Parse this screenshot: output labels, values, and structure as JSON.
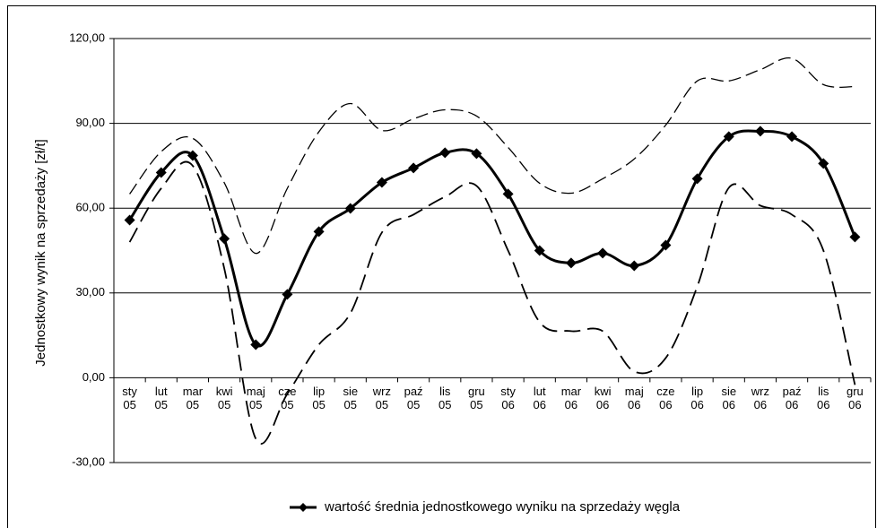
{
  "chart_data": {
    "type": "line",
    "y_axis_label": "Jednostkowy wynik na sprzedaży [zł/t]",
    "categories": [
      "sty 05",
      "lut 05",
      "mar 05",
      "kwi 05",
      "maj 05",
      "cze 05",
      "lip 05",
      "sie 05",
      "wrz 05",
      "paź 05",
      "lis 05",
      "gru 05",
      "sty 06",
      "lut 06",
      "mar 06",
      "kwi 06",
      "maj 06",
      "cze 06",
      "lip 06",
      "sie 06",
      "wrz 06",
      "paź 06",
      "lis 06",
      "gru 06"
    ],
    "series": [
      {
        "name": "wartość średnia jednostkowego wyniku na sprzedaży węgla",
        "color": "#000000",
        "style": "solid",
        "marker": "diamond",
        "values": [
          55.8,
          72.6,
          78.6,
          49.2,
          11.7,
          29.5,
          51.7,
          59.9,
          69.1,
          74.2,
          79.6,
          79.3,
          65,
          45,
          40.6,
          44.1,
          39.6,
          46.9,
          70.4,
          85.3,
          87.2,
          85.3,
          75.8,
          49.8
        ]
      },
      {
        "color": "#000000",
        "style": "dashed-thin",
        "values": [
          65,
          80,
          84.7,
          69,
          44,
          67,
          87,
          97,
          87.5,
          91.6,
          94.8,
          92.6,
          81.5,
          68.8,
          65.3,
          70.4,
          77.4,
          89.4,
          105,
          105,
          109,
          113,
          103.7,
          103
        ]
      },
      {
        "color": "#000000",
        "style": "dashed-thick",
        "values": [
          48,
          67,
          75,
          38.7,
          -21.6,
          -5.7,
          11.7,
          22.8,
          51.4,
          57.7,
          64,
          67.9,
          45,
          19.7,
          16.5,
          16.5,
          2.2,
          7,
          32.3,
          67.2,
          60.9,
          57.7,
          45,
          -2.5
        ]
      }
    ],
    "ylim": [
      -30,
      120
    ],
    "yticks": [
      {
        "value": -30,
        "label": "-30,00"
      },
      {
        "value": 0,
        "label": "0,00"
      },
      {
        "value": 30,
        "label": "30,00"
      },
      {
        "value": 60,
        "label": "60,00"
      },
      {
        "value": 90,
        "label": "90,00"
      },
      {
        "value": 120,
        "label": "120,00"
      }
    ],
    "grid": true,
    "legend": "bottom"
  }
}
